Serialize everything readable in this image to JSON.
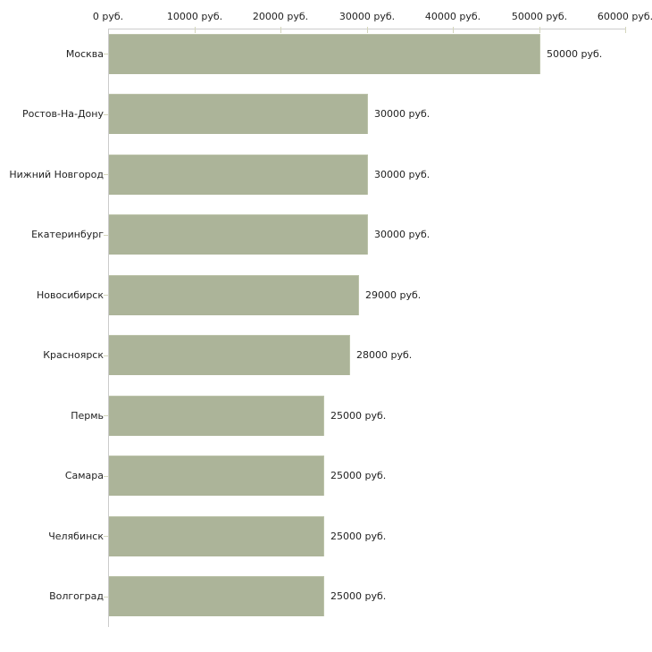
{
  "chart_data": {
    "type": "bar",
    "orientation": "horizontal",
    "title": "",
    "xlabel": "",
    "ylabel": "",
    "unit": "руб.",
    "categories": [
      "Москва",
      "Ростов-На-Дону",
      "Нижний Новгород",
      "Екатеринбург",
      "Новосибирск",
      "Красноярск",
      "Пермь",
      "Самара",
      "Челябинск",
      "Волгоград"
    ],
    "values": [
      50000,
      30000,
      30000,
      30000,
      29000,
      28000,
      25000,
      25000,
      25000,
      25000
    ],
    "value_labels": [
      "50000 руб.",
      "30000 руб.",
      "30000 руб.",
      "30000 руб.",
      "29000 руб.",
      "28000 руб.",
      "25000 руб.",
      "25000 руб.",
      "25000 руб.",
      "25000 руб."
    ],
    "x_ticks": [
      {
        "value": 0,
        "label": "0 руб."
      },
      {
        "value": 10000,
        "label": "10000 руб."
      },
      {
        "value": 20000,
        "label": "20000 руб."
      },
      {
        "value": 30000,
        "label": "30000 руб."
      },
      {
        "value": 40000,
        "label": "40000 руб."
      },
      {
        "value": 50000,
        "label": "50000 руб."
      },
      {
        "value": 60000,
        "label": "60000 руб."
      }
    ],
    "xlim": [
      0,
      60000
    ],
    "grid": false,
    "legend": false,
    "colors": {
      "bar": "#acb499",
      "axis": "#cccccc",
      "tick": "#d4d6bc",
      "text": "#222222",
      "background": "#ffffff"
    }
  }
}
